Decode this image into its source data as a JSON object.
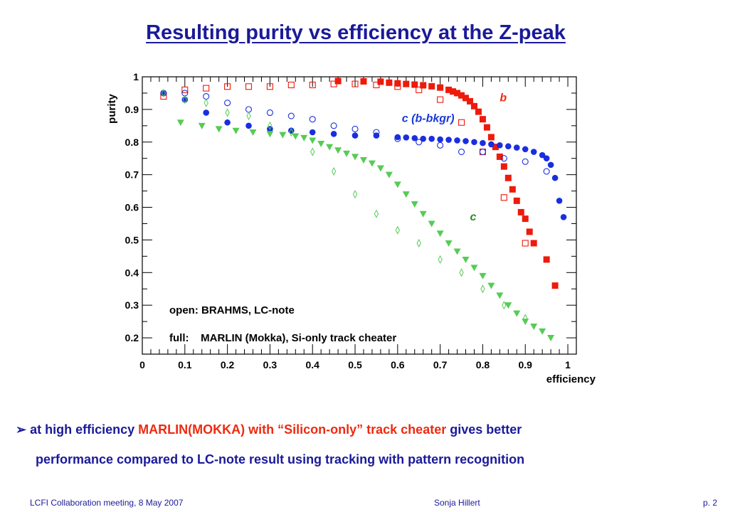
{
  "slide": {
    "title": "Resulting purity vs efficiency at the Z-peak",
    "bullet": {
      "marker": "➢",
      "part1": "at high efficiency",
      "part2": "MARLIN(MOKKA) with “Silicon-only” track cheater",
      "part3": "gives better",
      "line2": "performance compared to LC-note result using tracking with pattern recognition"
    },
    "footer": {
      "left": "LCFI Collaboration meeting, 8 May 2007",
      "center": "Sonja Hillert",
      "right": "p. 2"
    },
    "colors": {
      "title": "#1a1a9a",
      "highlight": "#ee2a10"
    }
  },
  "chart_data": {
    "type": "scatter",
    "xlabel": "efficiency",
    "ylabel": "purity",
    "xlim": [
      0,
      1.02
    ],
    "ylim": [
      0.15,
      1.0
    ],
    "xticks": [
      "0",
      "0.1",
      "0.2",
      "0.3",
      "0.4",
      "0.5",
      "0.6",
      "0.7",
      "0.8",
      "0.9",
      "1"
    ],
    "yticks": [
      "0.2",
      "0.3",
      "0.4",
      "0.5",
      "0.6",
      "0.7",
      "0.8",
      "0.9",
      "1"
    ],
    "legend": {
      "line1": "open: BRAHMS, LC-note",
      "line2": "full:    MARLIN (Mokka), Si-only track cheater"
    },
    "annotations": [
      {
        "text": "b",
        "x": 0.84,
        "y": 0.925,
        "color": "#ee2a10"
      },
      {
        "text": "c (b-bkgr)",
        "x": 0.61,
        "y": 0.862,
        "color": "#1a3ad8"
      },
      {
        "text": "c",
        "x": 0.77,
        "y": 0.56,
        "color": "#2a8a2a"
      }
    ],
    "series": [
      {
        "name": "b",
        "color": "#ee1a0a",
        "marker": "square",
        "filled": true,
        "points": [
          [
            0.46,
            0.987
          ],
          [
            0.52,
            0.986
          ],
          [
            0.56,
            0.985
          ],
          [
            0.58,
            0.982
          ],
          [
            0.6,
            0.98
          ],
          [
            0.62,
            0.978
          ],
          [
            0.64,
            0.976
          ],
          [
            0.66,
            0.974
          ],
          [
            0.68,
            0.971
          ],
          [
            0.7,
            0.967
          ],
          [
            0.72,
            0.96
          ],
          [
            0.73,
            0.955
          ],
          [
            0.74,
            0.95
          ],
          [
            0.75,
            0.943
          ],
          [
            0.76,
            0.935
          ],
          [
            0.77,
            0.925
          ],
          [
            0.78,
            0.91
          ],
          [
            0.79,
            0.893
          ],
          [
            0.8,
            0.87
          ],
          [
            0.81,
            0.845
          ],
          [
            0.82,
            0.815
          ],
          [
            0.83,
            0.785
          ],
          [
            0.84,
            0.755
          ],
          [
            0.85,
            0.725
          ],
          [
            0.86,
            0.69
          ],
          [
            0.87,
            0.655
          ],
          [
            0.88,
            0.62
          ],
          [
            0.89,
            0.585
          ],
          [
            0.9,
            0.565
          ],
          [
            0.91,
            0.525
          ],
          [
            0.92,
            0.49
          ],
          [
            0.95,
            0.44
          ],
          [
            0.97,
            0.36
          ]
        ]
      },
      {
        "name": "b (BRAHMS)",
        "color": "#ee1a0a",
        "marker": "square",
        "filled": false,
        "points": [
          [
            0.05,
            0.94
          ],
          [
            0.1,
            0.96
          ],
          [
            0.15,
            0.965
          ],
          [
            0.2,
            0.97
          ],
          [
            0.25,
            0.97
          ],
          [
            0.3,
            0.97
          ],
          [
            0.35,
            0.975
          ],
          [
            0.4,
            0.975
          ],
          [
            0.45,
            0.978
          ],
          [
            0.5,
            0.978
          ],
          [
            0.55,
            0.975
          ],
          [
            0.6,
            0.97
          ],
          [
            0.65,
            0.96
          ],
          [
            0.7,
            0.93
          ],
          [
            0.75,
            0.86
          ],
          [
            0.8,
            0.77
          ],
          [
            0.85,
            0.63
          ],
          [
            0.9,
            0.49
          ]
        ]
      },
      {
        "name": "c (b-bkgr)",
        "color": "#1a2ee0",
        "marker": "circle",
        "filled": true,
        "points": [
          [
            0.05,
            0.95
          ],
          [
            0.1,
            0.93
          ],
          [
            0.15,
            0.89
          ],
          [
            0.2,
            0.86
          ],
          [
            0.25,
            0.85
          ],
          [
            0.3,
            0.84
          ],
          [
            0.35,
            0.835
          ],
          [
            0.4,
            0.83
          ],
          [
            0.45,
            0.825
          ],
          [
            0.5,
            0.82
          ],
          [
            0.55,
            0.82
          ],
          [
            0.6,
            0.815
          ],
          [
            0.62,
            0.814
          ],
          [
            0.64,
            0.812
          ],
          [
            0.66,
            0.81
          ],
          [
            0.68,
            0.81
          ],
          [
            0.7,
            0.808
          ],
          [
            0.72,
            0.807
          ],
          [
            0.74,
            0.805
          ],
          [
            0.76,
            0.803
          ],
          [
            0.78,
            0.8
          ],
          [
            0.8,
            0.797
          ],
          [
            0.82,
            0.793
          ],
          [
            0.84,
            0.79
          ],
          [
            0.86,
            0.787
          ],
          [
            0.88,
            0.783
          ],
          [
            0.9,
            0.778
          ],
          [
            0.92,
            0.77
          ],
          [
            0.94,
            0.76
          ],
          [
            0.95,
            0.75
          ],
          [
            0.96,
            0.73
          ],
          [
            0.97,
            0.69
          ],
          [
            0.98,
            0.62
          ],
          [
            0.99,
            0.57
          ]
        ]
      },
      {
        "name": "c (BRAHMS)",
        "color": "#1a2ee0",
        "marker": "circle",
        "filled": false,
        "points": [
          [
            0.05,
            0.95
          ],
          [
            0.1,
            0.95
          ],
          [
            0.15,
            0.94
          ],
          [
            0.2,
            0.92
          ],
          [
            0.25,
            0.9
          ],
          [
            0.3,
            0.89
          ],
          [
            0.35,
            0.88
          ],
          [
            0.4,
            0.87
          ],
          [
            0.45,
            0.85
          ],
          [
            0.5,
            0.84
          ],
          [
            0.55,
            0.83
          ],
          [
            0.6,
            0.81
          ],
          [
            0.65,
            0.8
          ],
          [
            0.7,
            0.79
          ],
          [
            0.75,
            0.77
          ],
          [
            0.8,
            0.77
          ],
          [
            0.85,
            0.75
          ],
          [
            0.9,
            0.74
          ],
          [
            0.95,
            0.71
          ]
        ]
      },
      {
        "name": "c",
        "color": "#55cc55",
        "marker": "triangle-down",
        "filled": true,
        "points": [
          [
            0.09,
            0.86
          ],
          [
            0.14,
            0.85
          ],
          [
            0.18,
            0.84
          ],
          [
            0.22,
            0.835
          ],
          [
            0.26,
            0.83
          ],
          [
            0.3,
            0.825
          ],
          [
            0.33,
            0.822
          ],
          [
            0.36,
            0.818
          ],
          [
            0.38,
            0.813
          ],
          [
            0.4,
            0.805
          ],
          [
            0.42,
            0.795
          ],
          [
            0.44,
            0.785
          ],
          [
            0.46,
            0.775
          ],
          [
            0.48,
            0.765
          ],
          [
            0.5,
            0.755
          ],
          [
            0.52,
            0.745
          ],
          [
            0.54,
            0.735
          ],
          [
            0.56,
            0.72
          ],
          [
            0.58,
            0.7
          ],
          [
            0.6,
            0.67
          ],
          [
            0.62,
            0.64
          ],
          [
            0.64,
            0.61
          ],
          [
            0.66,
            0.58
          ],
          [
            0.68,
            0.55
          ],
          [
            0.7,
            0.52
          ],
          [
            0.72,
            0.49
          ],
          [
            0.74,
            0.465
          ],
          [
            0.76,
            0.44
          ],
          [
            0.78,
            0.415
          ],
          [
            0.8,
            0.39
          ],
          [
            0.82,
            0.36
          ],
          [
            0.84,
            0.33
          ],
          [
            0.86,
            0.3
          ],
          [
            0.88,
            0.275
          ],
          [
            0.9,
            0.25
          ],
          [
            0.92,
            0.235
          ],
          [
            0.94,
            0.22
          ],
          [
            0.96,
            0.2
          ]
        ]
      },
      {
        "name": "c (BRAHMS) open",
        "color": "#55cc55",
        "marker": "diamond",
        "filled": false,
        "points": [
          [
            0.05,
            0.95
          ],
          [
            0.1,
            0.93
          ],
          [
            0.15,
            0.92
          ],
          [
            0.2,
            0.89
          ],
          [
            0.25,
            0.88
          ],
          [
            0.3,
            0.85
          ],
          [
            0.35,
            0.83
          ],
          [
            0.4,
            0.77
          ],
          [
            0.45,
            0.71
          ],
          [
            0.5,
            0.64
          ],
          [
            0.55,
            0.58
          ],
          [
            0.6,
            0.53
          ],
          [
            0.65,
            0.49
          ],
          [
            0.7,
            0.44
          ],
          [
            0.75,
            0.4
          ],
          [
            0.8,
            0.35
          ],
          [
            0.85,
            0.3
          ],
          [
            0.9,
            0.26
          ]
        ]
      }
    ]
  }
}
